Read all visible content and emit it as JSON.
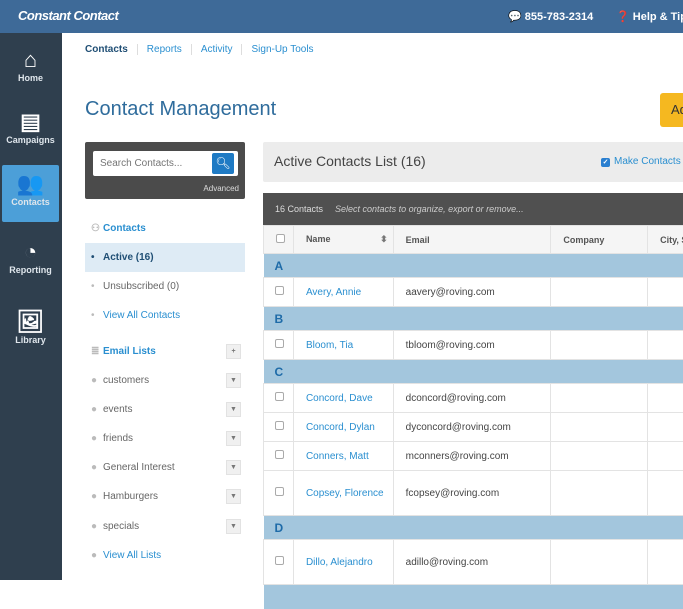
{
  "header": {
    "logo": "Constant Contact",
    "phone": "855-783-2314",
    "help": "Help & Tips"
  },
  "sidebar": {
    "items": [
      {
        "label": "Home",
        "icon": "home-icon"
      },
      {
        "label": "Campaigns",
        "icon": "inbox-icon"
      },
      {
        "label": "Contacts",
        "icon": "people-icon",
        "active": true
      },
      {
        "label": "Reporting",
        "icon": "pie-chart-icon"
      },
      {
        "label": "Library",
        "icon": "image-library-icon"
      }
    ]
  },
  "subnav": [
    "Contacts",
    "Reports",
    "Activity",
    "Sign-Up Tools"
  ],
  "page_title": "Contact Management",
  "add_button": "Ad",
  "search": {
    "placeholder": "Search Contacts...",
    "advanced": "Advanced"
  },
  "left": {
    "contacts_heading": "Contacts",
    "active": "Active (16)",
    "unsubscribed": "Unsubscribed (0)",
    "view_all_contacts": "View All Contacts",
    "email_lists_heading": "Email Lists",
    "lists": [
      "customers",
      "events",
      "friends",
      "General Interest",
      "Hamburgers",
      "specials"
    ],
    "view_all_lists": "View All Lists"
  },
  "list": {
    "title": "Active Contacts List (16)",
    "make_contacts": "Make Contacts",
    "count": "16 Contacts",
    "hint": "Select contacts to organize, export or remove...",
    "columns": [
      "Name",
      "Email",
      "Company",
      "City, S"
    ],
    "groups": [
      {
        "letter": "A",
        "rows": [
          {
            "name": "Avery, Annie",
            "email": "aavery@roving.com"
          }
        ]
      },
      {
        "letter": "B",
        "rows": [
          {
            "name": "Bloom, Tia",
            "email": "tbloom@roving.com"
          }
        ]
      },
      {
        "letter": "C",
        "rows": [
          {
            "name": "Concord, Dave",
            "email": "dconcord@roving.com"
          },
          {
            "name": "Concord, Dylan",
            "email": "dyconcord@roving.com"
          },
          {
            "name": "Conners, Matt",
            "email": "mconners@roving.com"
          },
          {
            "name": "Copsey, Florence",
            "email": "fcopsey@roving.com"
          }
        ]
      },
      {
        "letter": "D",
        "rows": [
          {
            "name": "Dillo, Alejandro",
            "email": "adillo@roving.com"
          }
        ]
      }
    ]
  }
}
